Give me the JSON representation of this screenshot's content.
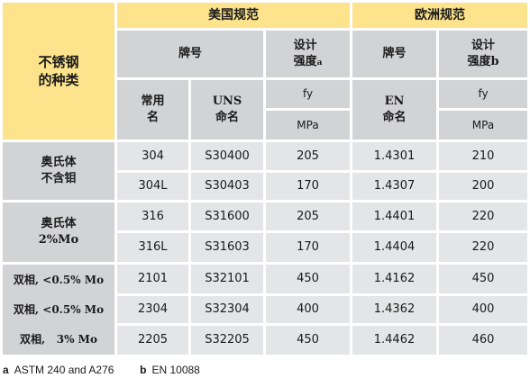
{
  "header": {
    "corner": "不锈钢\n的种类",
    "us_spec": "美国规范",
    "eu_spec": "欧洲规范",
    "us_grade": "牌号",
    "us_strength": "设计\n强度",
    "us_strength_sup": "a",
    "eu_grade": "牌号",
    "eu_strength": "设计\n强度b",
    "common_name": "常用\n名",
    "uns_name": "UNS\n命名",
    "en_name": "EN\n命名",
    "fy_us": "fy",
    "fy_eu": "fy",
    "mpa_us": "MPa",
    "mpa_eu": "MPa"
  },
  "groups": [
    {
      "label": "奥氏体\n不含钼"
    },
    {
      "label": "奥氏体\n2%Mo"
    }
  ],
  "duplex_labels": [
    "双相, <0.5% Mo",
    "双相, <0.5% Mo",
    "双相,   3% Mo"
  ],
  "rows": [
    {
      "common": "304",
      "uns": "S30400",
      "fy_us": "205",
      "en": "1.4301",
      "fy_eu": "210"
    },
    {
      "common": "304L",
      "uns": "S30403",
      "fy_us": "170",
      "en": "1.4307",
      "fy_eu": "200"
    },
    {
      "common": "316",
      "uns": "S31600",
      "fy_us": "205",
      "en": "1.4401",
      "fy_eu": "220"
    },
    {
      "common": "316L",
      "uns": "S31603",
      "fy_us": "170",
      "en": "1.4404",
      "fy_eu": "220"
    },
    {
      "common": "2101",
      "uns": "S32101",
      "fy_us": "450",
      "en": "1.4162",
      "fy_eu": "450"
    },
    {
      "common": "2304",
      "uns": "S32304",
      "fy_us": "400",
      "en": "1.4362",
      "fy_eu": "400"
    },
    {
      "common": "2205",
      "uns": "S32205",
      "fy_us": "450",
      "en": "1.4462",
      "fy_eu": "460"
    }
  ],
  "footnotes": {
    "a_key": "a",
    "a_text": "ASTM 240 and A276",
    "b_key": "b",
    "b_text": "EN 10088"
  }
}
